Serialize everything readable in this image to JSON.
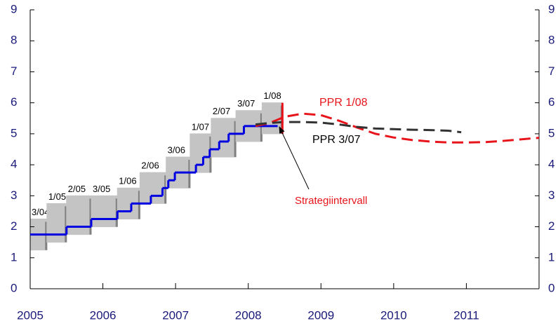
{
  "chart_data": {
    "type": "line",
    "xlim": [
      2005,
      2012
    ],
    "xticks": [
      2005,
      2006,
      2007,
      2008,
      2009,
      2010,
      2011
    ],
    "ylim": [
      0,
      9
    ],
    "yticks": [
      0,
      1,
      2,
      3,
      4,
      5,
      6,
      7,
      8,
      9
    ],
    "y2lim": [
      0,
      9
    ],
    "y2ticks": [
      0,
      1,
      2,
      3,
      4,
      5,
      6,
      7,
      8,
      9
    ],
    "intervals": [
      {
        "label": "3/04",
        "x0": 2005.0,
        "x1": 2005.23,
        "low": 1.25,
        "high": 2.25
      },
      {
        "label": "1/05",
        "x0": 2005.23,
        "x1": 2005.5,
        "low": 1.5,
        "high": 2.75
      },
      {
        "label": "2/05",
        "x0": 2005.5,
        "x1": 2005.84,
        "low": 1.75,
        "high": 3.0
      },
      {
        "label": "3/05",
        "x0": 2005.84,
        "x1": 2006.2,
        "low": 2.0,
        "high": 3.0
      },
      {
        "label": "1/06",
        "x0": 2006.2,
        "x1": 2006.51,
        "low": 2.25,
        "high": 3.25
      },
      {
        "label": "2/06",
        "x0": 2006.51,
        "x1": 2006.87,
        "low": 2.75,
        "high": 3.75
      },
      {
        "label": "3/06",
        "x0": 2006.87,
        "x1": 2007.2,
        "low": 3.25,
        "high": 4.25
      },
      {
        "label": "1/07",
        "x0": 2007.2,
        "x1": 2007.49,
        "low": 3.75,
        "high": 5.0
      },
      {
        "label": "2/07",
        "x0": 2007.49,
        "x1": 2007.83,
        "low": 4.25,
        "high": 5.5
      },
      {
        "label": "3/07",
        "x0": 2007.83,
        "x1": 2008.19,
        "low": 4.75,
        "high": 5.75
      },
      {
        "label": "1/08",
        "x0": 2008.19,
        "x1": 2008.47,
        "low": 5.0,
        "high": 6.0
      }
    ],
    "policy_rate": {
      "color": "#0000e0",
      "x": [
        2005.0,
        2005.5,
        2005.84,
        2006.2,
        2006.39,
        2006.66,
        2006.82,
        2006.9,
        2006.99,
        2007.28,
        2007.38,
        2007.47,
        2007.6,
        2007.73,
        2007.94,
        2008.4
      ],
      "values": [
        1.75,
        2.0,
        2.25,
        2.5,
        2.75,
        3.0,
        3.25,
        3.5,
        3.75,
        4.0,
        4.25,
        4.5,
        4.75,
        5.0,
        5.25,
        5.25
      ]
    },
    "series": [
      {
        "name": "PPR 1/08",
        "color": "#e8141b",
        "x": [
          2008.1,
          2008.3,
          2008.5,
          2008.75,
          2009.0,
          2009.25,
          2009.5,
          2009.75,
          2010.0,
          2010.25,
          2010.5,
          2010.75,
          2011.0,
          2011.25,
          2011.5,
          2011.75,
          2012.0
        ],
        "values": [
          5.25,
          5.35,
          5.55,
          5.65,
          5.6,
          5.42,
          5.2,
          5.0,
          4.88,
          4.8,
          4.75,
          4.72,
          4.72,
          4.73,
          4.77,
          4.82,
          4.87
        ]
      },
      {
        "name": "PPR 3/07",
        "color": "#333333",
        "x": [
          2008.1,
          2008.3,
          2008.5,
          2008.75,
          2009.0,
          2009.25,
          2009.5,
          2009.75,
          2010.0,
          2010.25,
          2010.5,
          2010.75,
          2010.93
        ],
        "values": [
          5.3,
          5.35,
          5.38,
          5.38,
          5.36,
          5.3,
          5.22,
          5.17,
          5.15,
          5.13,
          5.12,
          5.1,
          5.05
        ]
      }
    ],
    "strategy_interval": {
      "label": "Strategiintervall",
      "x": 2008.47,
      "low": 5.0,
      "high": 6.0,
      "color": "#e8141b"
    }
  }
}
